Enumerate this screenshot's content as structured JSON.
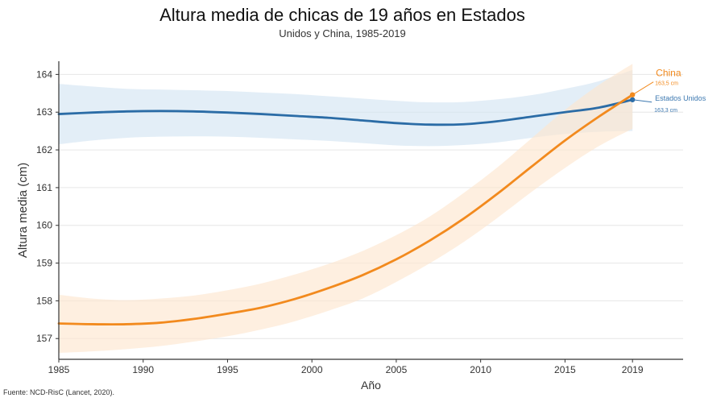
{
  "header": {
    "title": "Altura media de chicas de 19 años en Estados",
    "subtitle": "Unidos y China, 1985-2019"
  },
  "footer": {
    "source": "Fuente: NCD-RisC (Lancet, 2020)."
  },
  "colors": {
    "china": "#f28a1e",
    "china_band": "#fde6d0",
    "usa": "#2b6ca6",
    "usa_band": "#d4e5f2",
    "usa_label": "#3c78b0",
    "axis": "#333333",
    "grid": "#e6e6e6"
  },
  "chart_data": {
    "type": "line",
    "xlabel": "Año",
    "ylabel": "Altura media (cm)",
    "xlim": [
      1985,
      2022
    ],
    "ylim": [
      156.45,
      164.35
    ],
    "x_ticks": [
      1985,
      1990,
      1995,
      2000,
      2005,
      2010,
      2015,
      2019
    ],
    "y_ticks": [
      157,
      158,
      159,
      160,
      161,
      162,
      163,
      164
    ],
    "grid": true,
    "series": [
      {
        "name": "Estados Unidos",
        "key": "usa",
        "end_label": "163,3 cm",
        "x": [
          1985,
          1987,
          1989,
          1991,
          1993,
          1995,
          1997,
          1999,
          2001,
          2003,
          2005,
          2007,
          2009,
          2011,
          2013,
          2015,
          2017,
          2019
        ],
        "y": [
          162.95,
          162.99,
          163.02,
          163.03,
          163.02,
          162.99,
          162.95,
          162.9,
          162.85,
          162.78,
          162.71,
          162.67,
          162.68,
          162.76,
          162.88,
          163.0,
          163.12,
          163.33
        ],
        "lower": [
          162.15,
          162.25,
          162.32,
          162.35,
          162.36,
          162.35,
          162.32,
          162.28,
          162.24,
          162.18,
          162.12,
          162.1,
          162.13,
          162.2,
          162.32,
          162.42,
          162.48,
          162.5
        ],
        "upper": [
          163.75,
          163.68,
          163.62,
          163.6,
          163.58,
          163.56,
          163.52,
          163.48,
          163.42,
          163.36,
          163.3,
          163.26,
          163.27,
          163.34,
          163.45,
          163.62,
          163.82,
          164.12
        ]
      },
      {
        "name": "China",
        "key": "china",
        "end_label": "163,5 cm",
        "x": [
          1985,
          1987,
          1989,
          1991,
          1993,
          1995,
          1997,
          1999,
          2001,
          2003,
          2005,
          2007,
          2009,
          2011,
          2013,
          2015,
          2017,
          2019
        ],
        "y": [
          157.4,
          157.38,
          157.38,
          157.42,
          157.52,
          157.66,
          157.82,
          158.05,
          158.34,
          158.68,
          159.1,
          159.6,
          160.18,
          160.84,
          161.55,
          162.25,
          162.88,
          163.46
        ],
        "lower": [
          156.62,
          156.66,
          156.72,
          156.8,
          156.92,
          157.06,
          157.24,
          157.46,
          157.74,
          158.06,
          158.5,
          159.0,
          159.56,
          160.2,
          160.88,
          161.52,
          162.1,
          162.56
        ],
        "upper": [
          158.16,
          158.06,
          158.02,
          158.06,
          158.14,
          158.28,
          158.46,
          158.7,
          158.98,
          159.32,
          159.74,
          160.24,
          160.86,
          161.54,
          162.3,
          163.06,
          163.72,
          164.28
        ]
      }
    ]
  }
}
